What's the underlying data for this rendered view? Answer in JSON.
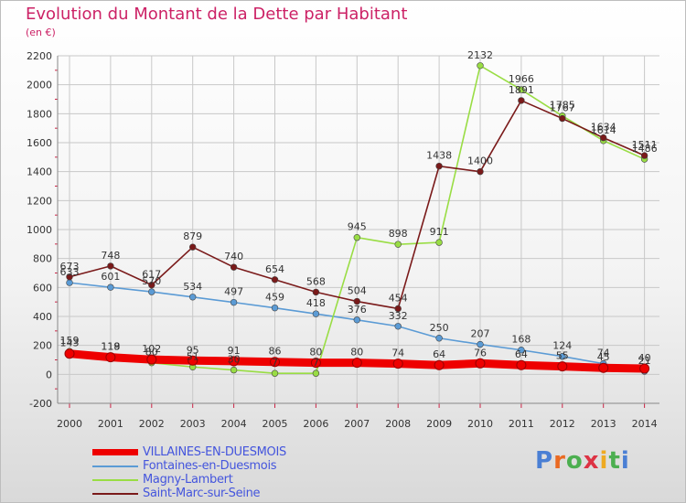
{
  "title": "Evolution du Montant de la Dette par Habitant",
  "unit": "(en €)",
  "brand": {
    "text": "Proxiti",
    "letter_colors": [
      "#4a7fd4",
      "#ea6a22",
      "#4caf50",
      "#dd3344",
      "#eeaa22",
      "#4caf50",
      "#4a7fd4"
    ]
  },
  "chart_data": {
    "type": "line",
    "title": "Evolution du Montant de la Dette par Habitant",
    "ylabel": "(en €)",
    "xlabel": "",
    "x": [
      "2000",
      "2001",
      "2002",
      "2003",
      "2004",
      "2005",
      "2006",
      "2007",
      "2008",
      "2009",
      "2010",
      "2011",
      "2012",
      "2013",
      "2014"
    ],
    "ylim": [
      -200,
      2200
    ],
    "yticks": [
      "-200",
      "0",
      "200",
      "400",
      "600",
      "800",
      "1000",
      "1200",
      "1400",
      "1600",
      "1800",
      "2000",
      "2200"
    ],
    "grid": true,
    "legend_position": "bottom-left",
    "series": [
      {
        "name": "VILLAINES-EN-DUESMOIS",
        "color": "#ee0000",
        "values": [
          143,
          118,
          102,
          95,
          91,
          86,
          80,
          80,
          74,
          64,
          76,
          64,
          55,
          45,
          40
        ],
        "labels": [
          "143",
          "118",
          "102",
          "95",
          "91",
          "86",
          "80",
          "80",
          "74",
          "64",
          "76",
          "64",
          "55",
          "45",
          "40"
        ]
      },
      {
        "name": "Fontaines-en-Duesmois",
        "color": "#5b9bd5",
        "values": [
          633,
          601,
          570,
          534,
          497,
          459,
          418,
          376,
          332,
          250,
          207,
          168,
          124,
          74,
          21
        ],
        "labels": [
          "633",
          "601",
          "570",
          "534",
          "497",
          "459",
          "418",
          "376",
          "332",
          "250",
          "207",
          "168",
          "124",
          "74",
          "21"
        ]
      },
      {
        "name": "Magny-Lambert",
        "color": "#99dd44",
        "values": [
          159,
          119,
          80,
          51,
          30,
          7,
          7,
          945,
          898,
          911,
          2132,
          1966,
          1785,
          1614,
          1486
        ],
        "labels": [
          "159",
          "119",
          "80",
          "51",
          "30",
          "7",
          "7",
          "945",
          "898",
          "911",
          "2132",
          "1966",
          "1785",
          "1614",
          "1486"
        ]
      },
      {
        "name": "Saint-Marc-sur-Seine",
        "color": "#7a1a1a",
        "values": [
          673,
          748,
          617,
          879,
          740,
          654,
          568,
          504,
          454,
          1438,
          1400,
          1891,
          1767,
          1634,
          1511
        ],
        "labels": [
          "673",
          "748",
          "617",
          "879",
          "740",
          "654",
          "568",
          "504",
          "454",
          "1438",
          "1400",
          "1891",
          "1767",
          "1634",
          "1511"
        ]
      }
    ]
  }
}
